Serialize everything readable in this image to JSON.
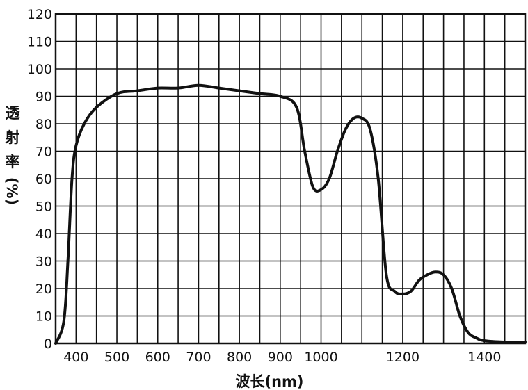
{
  "chart_data": {
    "type": "line",
    "title": "",
    "xlabel": "波长(nm)",
    "ylabel": "透射率(%)",
    "ylabel_chars": [
      "透",
      "射",
      "率",
      "(%)"
    ],
    "xlim": [
      350,
      1500
    ],
    "ylim": [
      0,
      120
    ],
    "grid": true,
    "x_tick_labels": [
      {
        "value": 400,
        "label": "400"
      },
      {
        "value": 500,
        "label": "500"
      },
      {
        "value": 600,
        "label": "600"
      },
      {
        "value": 700,
        "label": "700"
      },
      {
        "value": 800,
        "label": "800"
      },
      {
        "value": 900,
        "label": "900"
      },
      {
        "value": 1000,
        "label": "1000"
      },
      {
        "value": 1200,
        "label": "1200"
      },
      {
        "value": 1400,
        "label": "1400"
      }
    ],
    "y_tick_labels": [
      {
        "value": 0,
        "label": "0"
      },
      {
        "value": 10,
        "label": "10"
      },
      {
        "value": 20,
        "label": "20"
      },
      {
        "value": 30,
        "label": "30"
      },
      {
        "value": 40,
        "label": "40"
      },
      {
        "value": 50,
        "label": "50"
      },
      {
        "value": 60,
        "label": "60"
      },
      {
        "value": 70,
        "label": "70"
      },
      {
        "value": 80,
        "label": "80"
      },
      {
        "value": 90,
        "label": "90"
      },
      {
        "value": 100,
        "label": "100"
      },
      {
        "value": 110,
        "label": "110"
      },
      {
        "value": 120,
        "label": "120"
      }
    ],
    "series": [
      {
        "x": [
          350,
          370,
          380,
          390,
          400,
          420,
          450,
          500,
          550,
          600,
          650,
          700,
          750,
          800,
          850,
          900,
          940,
          960,
          980,
          1000,
          1020,
          1040,
          1060,
          1080,
          1100,
          1120,
          1140,
          1160,
          1180,
          1200,
          1220,
          1240,
          1260,
          1280,
          1300,
          1320,
          1340,
          1360,
          1380,
          1400,
          1450,
          1500
        ],
        "y": [
          0,
          8,
          30,
          60,
          72,
          80,
          86,
          91,
          92,
          93,
          93,
          94,
          93,
          92,
          91,
          90,
          86,
          70,
          57,
          56,
          60,
          70,
          78,
          82,
          82,
          78,
          60,
          25,
          19,
          18,
          19,
          23,
          25,
          26,
          25,
          20,
          10,
          4,
          2,
          1,
          0.5,
          0.5
        ]
      }
    ]
  }
}
